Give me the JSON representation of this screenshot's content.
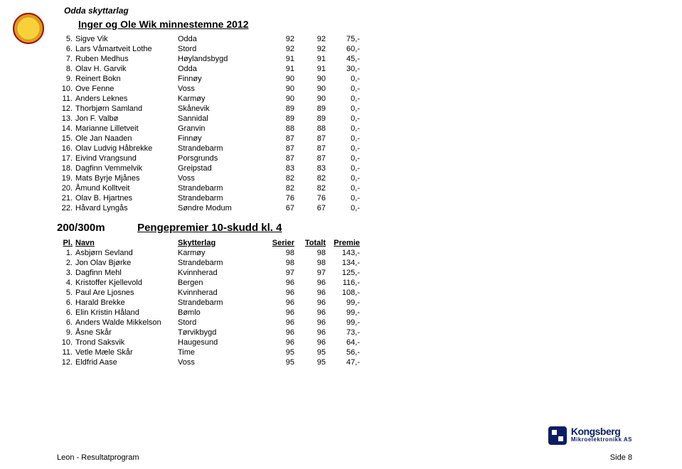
{
  "header": {
    "club": "Odda skyttarlag",
    "title": "Inger og Ole Wik minnestemne 2012"
  },
  "table1": {
    "rows": [
      {
        "rank": "5.",
        "name": "Sigve Vik",
        "club": "Odda",
        "s1": "92",
        "tot": "92",
        "prem": "75,-"
      },
      {
        "rank": "6.",
        "name": "Lars Våmartveit Lothe",
        "club": "Stord",
        "s1": "92",
        "tot": "92",
        "prem": "60,-"
      },
      {
        "rank": "7.",
        "name": "Ruben Medhus",
        "club": "Høylandsbygd",
        "s1": "91",
        "tot": "91",
        "prem": "45,-"
      },
      {
        "rank": "8.",
        "name": "Olav H. Garvik",
        "club": "Odda",
        "s1": "91",
        "tot": "91",
        "prem": "30,-"
      },
      {
        "rank": "9.",
        "name": "Reinert Bokn",
        "club": "Finnøy",
        "s1": "90",
        "tot": "90",
        "prem": "0,-"
      },
      {
        "rank": "10.",
        "name": "Ove Fenne",
        "club": "Voss",
        "s1": "90",
        "tot": "90",
        "prem": "0,-"
      },
      {
        "rank": "11.",
        "name": "Anders Leknes",
        "club": "Karmøy",
        "s1": "90",
        "tot": "90",
        "prem": "0,-"
      },
      {
        "rank": "12.",
        "name": "Thorbjørn Samland",
        "club": "Skånevik",
        "s1": "89",
        "tot": "89",
        "prem": "0,-"
      },
      {
        "rank": "13.",
        "name": "Jon F. Valbø",
        "club": "Sannidal",
        "s1": "89",
        "tot": "89",
        "prem": "0,-"
      },
      {
        "rank": "14.",
        "name": "Marianne Lilletveit",
        "club": "Granvin",
        "s1": "88",
        "tot": "88",
        "prem": "0,-"
      },
      {
        "rank": "15.",
        "name": "Ole Jan Naaden",
        "club": "Finnøy",
        "s1": "87",
        "tot": "87",
        "prem": "0,-"
      },
      {
        "rank": "16.",
        "name": "Olav Ludvig Håbrekke",
        "club": "Strandebarm",
        "s1": "87",
        "tot": "87",
        "prem": "0,-"
      },
      {
        "rank": "17.",
        "name": "Eivind Vrangsund",
        "club": "Porsgrunds",
        "s1": "87",
        "tot": "87",
        "prem": "0,-"
      },
      {
        "rank": "18.",
        "name": "Dagfinn Vemmelvik",
        "club": "Greipstad",
        "s1": "83",
        "tot": "83",
        "prem": "0,-"
      },
      {
        "rank": "19.",
        "name": "Mats Byrje Mjånes",
        "club": "Voss",
        "s1": "82",
        "tot": "82",
        "prem": "0,-"
      },
      {
        "rank": "20.",
        "name": "Åmund Kolltveit",
        "club": "Strandebarm",
        "s1": "82",
        "tot": "82",
        "prem": "0,-"
      },
      {
        "rank": "21.",
        "name": "Olav B. Hjartnes",
        "club": "Strandebarm",
        "s1": "76",
        "tot": "76",
        "prem": "0,-"
      },
      {
        "rank": "22.",
        "name": "Håvard Lyngås",
        "club": "Søndre Modum",
        "s1": "67",
        "tot": "67",
        "prem": "0,-"
      }
    ]
  },
  "section2": {
    "category": "200/300m",
    "title": "Pengepremier 10-skudd kl. 4"
  },
  "table2": {
    "headers": {
      "rank": "Pl.",
      "name": "Navn",
      "club": "Skytterlag",
      "s1": "Serier",
      "tot": "Totalt",
      "prem": "Premie"
    },
    "rows": [
      {
        "rank": "1.",
        "name": "Asbjørn Sevland",
        "club": "Karmøy",
        "s1": "98",
        "tot": "98",
        "prem": "143,-"
      },
      {
        "rank": "2.",
        "name": "Jon Olav Bjørke",
        "club": "Strandebarm",
        "s1": "98",
        "tot": "98",
        "prem": "134,-"
      },
      {
        "rank": "3.",
        "name": "Dagfinn Mehl",
        "club": "Kvinnherad",
        "s1": "97",
        "tot": "97",
        "prem": "125,-"
      },
      {
        "rank": "4.",
        "name": "Kristoffer Kjellevold",
        "club": "Bergen",
        "s1": "96",
        "tot": "96",
        "prem": "116,-"
      },
      {
        "rank": "5.",
        "name": "Paul Are Ljosnes",
        "club": "Kvinnherad",
        "s1": "96",
        "tot": "96",
        "prem": "108,-"
      },
      {
        "rank": "6.",
        "name": "Harald Brekke",
        "club": "Strandebarm",
        "s1": "96",
        "tot": "96",
        "prem": "99,-"
      },
      {
        "rank": "6.",
        "name": "Elin Kristin Håland",
        "club": "Bømlo",
        "s1": "96",
        "tot": "96",
        "prem": "99,-"
      },
      {
        "rank": "6.",
        "name": "Anders Walde Mikkelson",
        "club": "Stord",
        "s1": "96",
        "tot": "96",
        "prem": "99,-"
      },
      {
        "rank": "9.",
        "name": "Åsne Skår",
        "club": "Tørvikbygd",
        "s1": "96",
        "tot": "96",
        "prem": "73,-"
      },
      {
        "rank": "10.",
        "name": "Trond Saksvik",
        "club": "Haugesund",
        "s1": "96",
        "tot": "96",
        "prem": "64,-"
      },
      {
        "rank": "11.",
        "name": "Vetle Mæle Skår",
        "club": "Time",
        "s1": "95",
        "tot": "95",
        "prem": "56,-"
      },
      {
        "rank": "12.",
        "name": "Eldfrid Aase",
        "club": "Voss",
        "s1": "95",
        "tot": "95",
        "prem": "47,-"
      }
    ]
  },
  "sponsor": {
    "name": "Kongsberg",
    "sub": "Mikroelektronikk AS"
  },
  "footer": {
    "left": "Leon - Resultatprogram",
    "right": "Side 8"
  },
  "style": {
    "page_bg": "#ffffff",
    "text_color": "#000000",
    "font_body": 11,
    "font_title": 14,
    "font_section": 15,
    "brand_color": "#0a1e64"
  }
}
